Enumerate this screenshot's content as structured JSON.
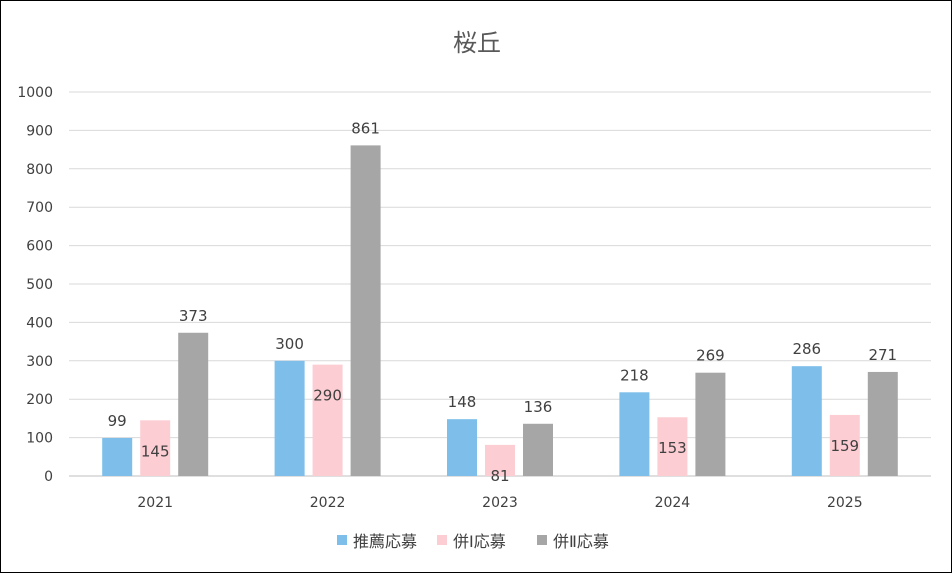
{
  "chart_data": {
    "type": "bar",
    "title": "桜丘",
    "categories": [
      "2021",
      "2022",
      "2023",
      "2024",
      "2025"
    ],
    "series": [
      {
        "name": "推薦応募",
        "color": "#7DBFEA",
        "values": [
          99,
          300,
          148,
          218,
          286
        ],
        "label_position": "above"
      },
      {
        "name": "併Ⅰ応募",
        "color": "#FCCDD3",
        "values": [
          145,
          290,
          81,
          153,
          159
        ],
        "label_position": "inside"
      },
      {
        "name": "併Ⅱ応募",
        "color": "#A6A6A6",
        "values": [
          373,
          861,
          136,
          269,
          271
        ],
        "label_position": "above"
      }
    ],
    "ylim": [
      0,
      1000
    ],
    "yticks": [
      0,
      100,
      200,
      300,
      400,
      500,
      600,
      700,
      800,
      900,
      1000
    ],
    "xlabel": "",
    "ylabel": "",
    "grid": true,
    "legend": "bottom"
  }
}
